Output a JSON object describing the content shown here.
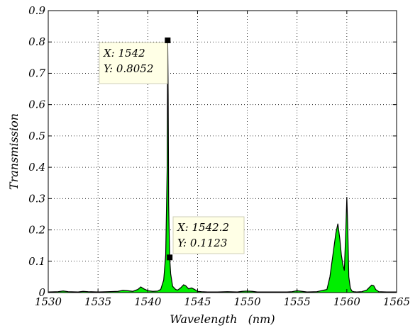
{
  "chart_data": {
    "type": "area",
    "xlabel": "Wavelength   (nm)",
    "ylabel": "Transmission",
    "xlim": [
      1530,
      1565
    ],
    "ylim": [
      0,
      0.9
    ],
    "xticks": [
      "1530",
      "1535",
      "1540",
      "1545",
      "1550",
      "1555",
      "1560",
      "1565"
    ],
    "yticks": [
      "0",
      "0.1",
      "0.2",
      "0.3",
      "0.4",
      "0.5",
      "0.6",
      "0.7",
      "0.8",
      "0.9"
    ],
    "grid": true,
    "fill_color": "#00ee00",
    "line_color": "#000000",
    "series": [
      {
        "x": [
          1530,
          1531,
          1531.5,
          1532,
          1533,
          1533.5,
          1534,
          1535,
          1536,
          1537,
          1537.5,
          1538,
          1538.5,
          1539,
          1539.3,
          1539.6,
          1540,
          1540.5,
          1541,
          1541.3,
          1541.6,
          1541.8,
          1541.95,
          1542,
          1542.05,
          1542.1,
          1542.2,
          1542.3,
          1542.5,
          1542.8,
          1543,
          1543.3,
          1543.6,
          1543.8,
          1544.1,
          1544.4,
          1544.7,
          1545,
          1545.4,
          1546,
          1547,
          1548,
          1549,
          1549.5,
          1550,
          1550.5,
          1551,
          1552,
          1553,
          1554,
          1554.5,
          1555,
          1555.5,
          1556,
          1557,
          1558,
          1558.3,
          1558.6,
          1558.9,
          1559.1,
          1559.3,
          1559.45,
          1559.6,
          1559.75,
          1559.9,
          1560,
          1560.1,
          1560.2,
          1560.35,
          1560.5,
          1560.7,
          1561,
          1561.5,
          1562,
          1562.3,
          1562.5,
          1562.7,
          1562.9,
          1563.2,
          1564,
          1565
        ],
        "y": [
          0.002,
          0.003,
          0.005,
          0.003,
          0.002,
          0.004,
          0.003,
          0.002,
          0.003,
          0.004,
          0.007,
          0.006,
          0.004,
          0.01,
          0.018,
          0.012,
          0.006,
          0.004,
          0.005,
          0.01,
          0.04,
          0.12,
          0.4,
          0.8052,
          0.63,
          0.28,
          0.1123,
          0.06,
          0.02,
          0.01,
          0.008,
          0.015,
          0.025,
          0.022,
          0.012,
          0.015,
          0.01,
          0.004,
          0.003,
          0.002,
          0.002,
          0.003,
          0.002,
          0.004,
          0.005,
          0.004,
          0.002,
          0.002,
          0.002,
          0.002,
          0.003,
          0.006,
          0.004,
          0.002,
          0.003,
          0.01,
          0.05,
          0.12,
          0.19,
          0.22,
          0.17,
          0.12,
          0.09,
          0.07,
          0.2,
          0.305,
          0.2,
          0.05,
          0.015,
          0.005,
          0.003,
          0.002,
          0.003,
          0.008,
          0.018,
          0.024,
          0.022,
          0.01,
          0.003,
          0.002,
          0.002
        ]
      }
    ],
    "datatips": [
      {
        "point": [
          1542,
          0.8052
        ],
        "x_text": "X: 1542",
        "y_text": "Y: 0.8052"
      },
      {
        "point": [
          1542.2,
          0.1123
        ],
        "x_text": "X: 1542.2",
        "y_text": "Y: 0.1123"
      }
    ]
  }
}
